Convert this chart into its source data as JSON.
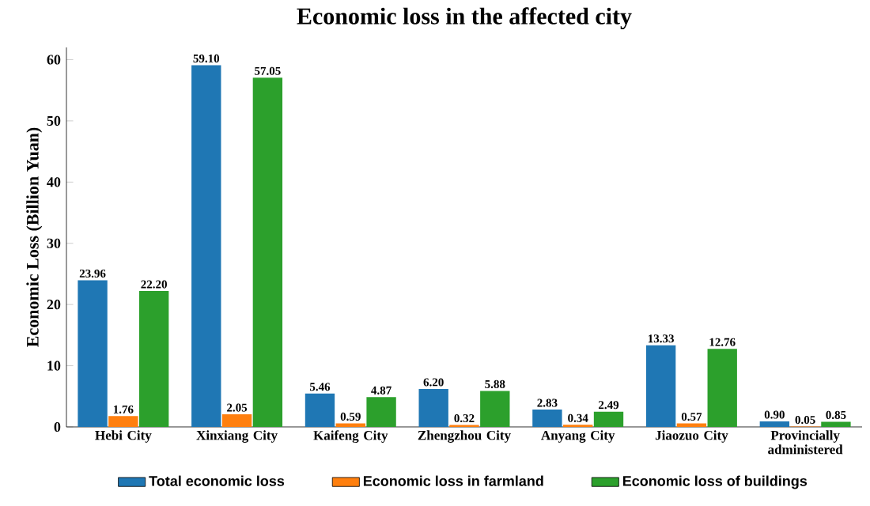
{
  "chart_data": {
    "type": "bar",
    "title": "Economic loss in the affected city",
    "ylabel": "Economic Loss (Billion Yuan)",
    "categories": [
      "Hebi City",
      "Xinxiang City",
      "Kaifeng City",
      "Zhengzhou City",
      "Anyang City",
      "Jiaozuo City",
      "Provincially administered"
    ],
    "series": [
      {
        "name": "Total economic loss",
        "color": "#1f77b4",
        "values": [
          23.96,
          59.1,
          5.46,
          6.2,
          2.83,
          13.33,
          0.9
        ],
        "value_labels": [
          "23.96",
          "59.10",
          "5.46",
          "6.20",
          "2.83",
          "13.33",
          "0.90"
        ]
      },
      {
        "name": "Economic loss in farmland",
        "color": "#ff7f0e",
        "values": [
          1.76,
          2.05,
          0.59,
          0.32,
          0.34,
          0.57,
          0.05
        ],
        "value_labels": [
          "1.76",
          "2.05",
          "0.59",
          "0.32",
          "0.34",
          "0.57",
          "0.05"
        ]
      },
      {
        "name": "Economic loss of buildings",
        "color": "#2ca02c",
        "values": [
          22.2,
          57.05,
          4.87,
          5.88,
          2.49,
          12.76,
          0.85
        ],
        "value_labels": [
          "22.20",
          "57.05",
          "4.87",
          "5.88",
          "2.49",
          "12.76",
          "0.85"
        ]
      }
    ],
    "ylim": [
      0,
      62
    ],
    "yticks": [
      0,
      10,
      20,
      30,
      40,
      50,
      60
    ],
    "legend": "bottom"
  }
}
